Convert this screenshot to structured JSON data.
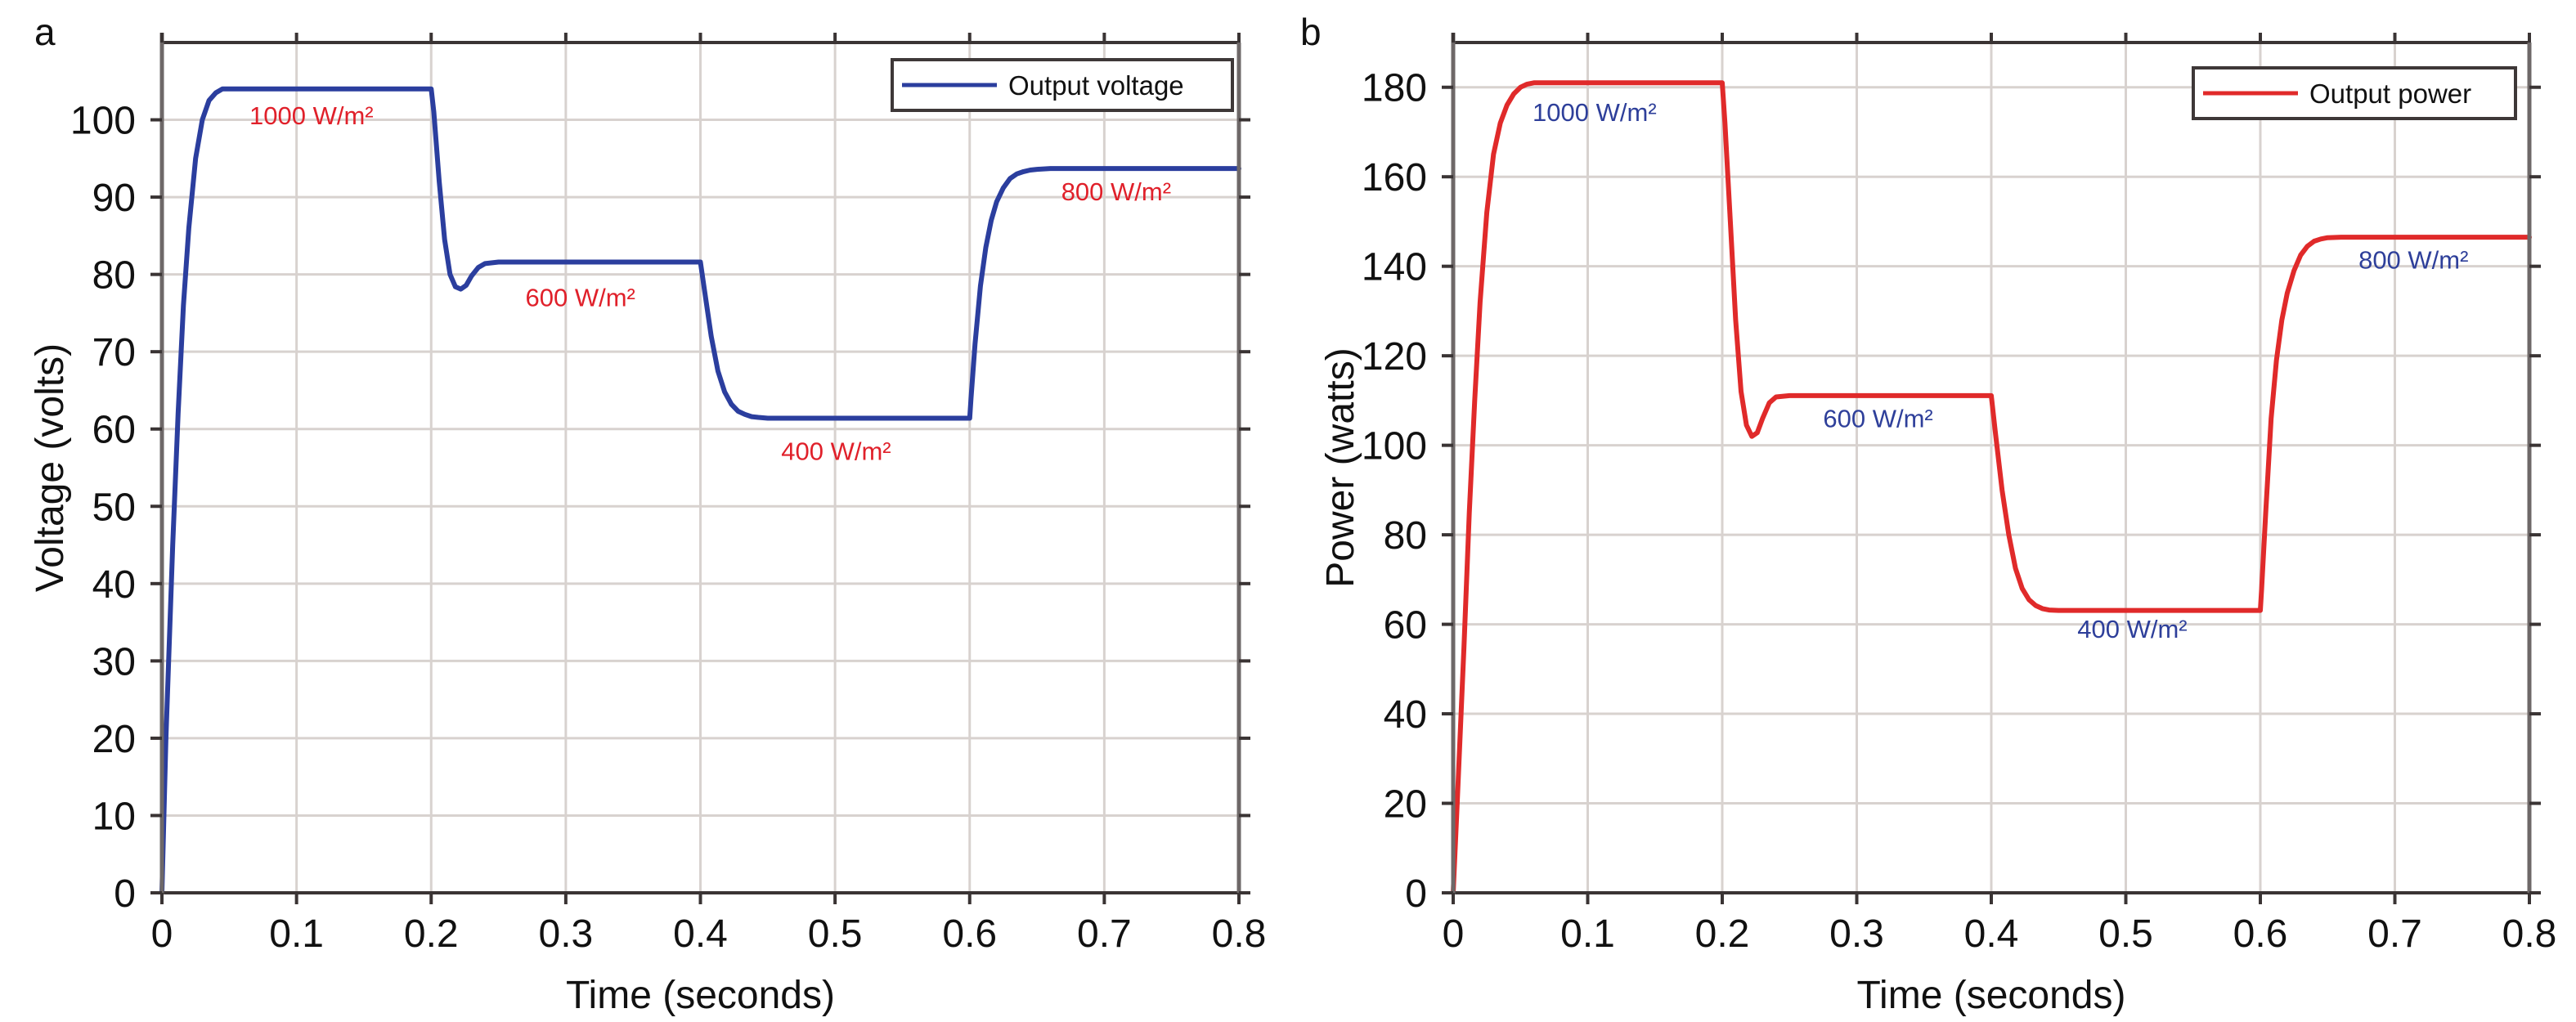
{
  "chart_data": [
    {
      "panel": "a",
      "type": "line",
      "xlabel": "Time (seconds)",
      "ylabel": "Voltage (volts)",
      "xlim": [
        0,
        0.8
      ],
      "ylim": [
        0,
        110
      ],
      "xticks": [
        0,
        0.1,
        0.2,
        0.3,
        0.4,
        0.5,
        0.6,
        0.7,
        0.8
      ],
      "xtick_labels": [
        "0",
        "0.1",
        "0.2",
        "0.3",
        "0.4",
        "0.5",
        "0.6",
        "0.7",
        "0.8"
      ],
      "yticks": [
        0,
        10,
        20,
        30,
        40,
        50,
        60,
        70,
        80,
        90,
        100
      ],
      "ytick_labels": [
        "0",
        "10",
        "20",
        "30",
        "40",
        "50",
        "60",
        "70",
        "80",
        "90",
        "100"
      ],
      "grid": true,
      "legend": {
        "position": "top-right",
        "entries": [
          {
            "label": "Output voltage",
            "color": "#2b3e9e"
          }
        ]
      },
      "series": [
        {
          "name": "Output voltage",
          "color": "#2b3e9e",
          "x": [
            0,
            0.003,
            0.008,
            0.012,
            0.016,
            0.02,
            0.025,
            0.03,
            0.035,
            0.04,
            0.045,
            0.05,
            0.1,
            0.15,
            0.2,
            0.202,
            0.206,
            0.21,
            0.214,
            0.218,
            0.222,
            0.226,
            0.23,
            0.235,
            0.24,
            0.25,
            0.3,
            0.35,
            0.4,
            0.403,
            0.408,
            0.413,
            0.418,
            0.423,
            0.428,
            0.433,
            0.438,
            0.443,
            0.45,
            0.5,
            0.55,
            0.6,
            0.601,
            0.604,
            0.608,
            0.612,
            0.616,
            0.62,
            0.625,
            0.63,
            0.635,
            0.64,
            0.645,
            0.65,
            0.66,
            0.7,
            0.75,
            0.8
          ],
          "values": [
            0,
            20,
            45,
            62,
            76,
            86,
            95,
            100,
            102.5,
            103.5,
            104,
            104,
            104,
            104,
            104,
            101,
            92,
            84.5,
            80,
            78.4,
            78.1,
            78.6,
            79.8,
            80.9,
            81.4,
            81.6,
            81.6,
            81.6,
            81.6,
            78,
            72,
            67.5,
            64.8,
            63.2,
            62.3,
            61.9,
            61.6,
            61.5,
            61.4,
            61.4,
            61.4,
            61.4,
            64,
            71,
            78.5,
            83.5,
            87,
            89.4,
            91.2,
            92.4,
            93,
            93.3,
            93.5,
            93.6,
            93.7,
            93.7,
            93.7,
            93.7
          ]
        }
      ],
      "annotations": [
        {
          "text": "1000 W/m²",
          "x": 0.065,
          "y": 99.4,
          "color": "#e0202a"
        },
        {
          "text": "600 W/m²",
          "x": 0.27,
          "y": 75.9,
          "color": "#e0202a"
        },
        {
          "text": "400 W/m²",
          "x": 0.46,
          "y": 56.0,
          "color": "#e0202a"
        },
        {
          "text": "800 W/m²",
          "x": 0.668,
          "y": 89.6,
          "color": "#e0202a"
        }
      ]
    },
    {
      "panel": "b",
      "type": "line",
      "xlabel": "Time (seconds)",
      "ylabel": "Power (watts)",
      "xlim": [
        0,
        0.8
      ],
      "ylim": [
        0,
        190
      ],
      "xticks": [
        0,
        0.1,
        0.2,
        0.3,
        0.4,
        0.5,
        0.6,
        0.7,
        0.8
      ],
      "xtick_labels": [
        "0",
        "0.1",
        "0.2",
        "0.3",
        "0.4",
        "0.5",
        "0.6",
        "0.7",
        "0.8"
      ],
      "yticks": [
        0,
        20,
        40,
        60,
        80,
        100,
        120,
        140,
        160,
        180
      ],
      "ytick_labels": [
        "0",
        "20",
        "40",
        "60",
        "80",
        "100",
        "120",
        "140",
        "160",
        "180"
      ],
      "grid": true,
      "legend": {
        "position": "top-right",
        "entries": [
          {
            "label": "Output power",
            "color": "#e02a2a"
          }
        ]
      },
      "series": [
        {
          "name": "Output power",
          "color": "#e02a2a",
          "x": [
            0,
            0.003,
            0.008,
            0.012,
            0.016,
            0.02,
            0.025,
            0.03,
            0.035,
            0.04,
            0.045,
            0.05,
            0.055,
            0.06,
            0.1,
            0.15,
            0.2,
            0.202,
            0.206,
            0.21,
            0.214,
            0.218,
            0.222,
            0.226,
            0.23,
            0.235,
            0.24,
            0.25,
            0.3,
            0.35,
            0.4,
            0.403,
            0.408,
            0.413,
            0.418,
            0.423,
            0.428,
            0.433,
            0.438,
            0.443,
            0.45,
            0.5,
            0.55,
            0.6,
            0.601,
            0.604,
            0.608,
            0.612,
            0.616,
            0.62,
            0.625,
            0.63,
            0.635,
            0.64,
            0.645,
            0.65,
            0.66,
            0.7,
            0.75,
            0.8
          ],
          "values": [
            0,
            20,
            55,
            85,
            110,
            132,
            152,
            165,
            172,
            176,
            178.5,
            180,
            180.7,
            181,
            181,
            181,
            181,
            172,
            150,
            128,
            112,
            104.5,
            102,
            102.8,
            106,
            109.5,
            110.8,
            111.1,
            111.1,
            111.1,
            111.1,
            103,
            90,
            80,
            72.5,
            68,
            65.5,
            64.2,
            63.5,
            63.2,
            63.1,
            63.1,
            63.1,
            63.1,
            68,
            85,
            106,
            119,
            128,
            134,
            139,
            142.5,
            144.5,
            145.6,
            146.1,
            146.4,
            146.5,
            146.5,
            146.5,
            146.5
          ]
        }
      ],
      "annotations": [
        {
          "text": "1000 W/m²",
          "x": 0.059,
          "y": 172.5,
          "color": "#2e3f9a"
        },
        {
          "text": "600 W/m²",
          "x": 0.275,
          "y": 104.0,
          "color": "#2e3f9a"
        },
        {
          "text": "400 W/m²",
          "x": 0.464,
          "y": 57.0,
          "color": "#2e3f9a"
        },
        {
          "text": "800 W/m²",
          "x": 0.673,
          "y": 139.5,
          "color": "#2e3f9a"
        }
      ]
    }
  ]
}
